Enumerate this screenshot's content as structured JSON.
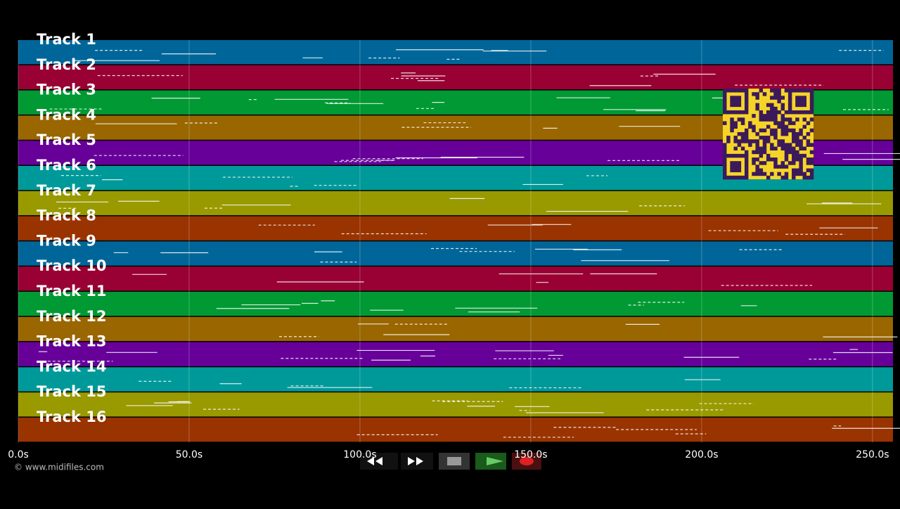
{
  "tracks": [
    {
      "label": "Track 1",
      "color": "#006699"
    },
    {
      "label": "Track 2",
      "color": "#990033"
    },
    {
      "label": "Track 3",
      "color": "#009933"
    },
    {
      "label": "Track 4",
      "color": "#996600"
    },
    {
      "label": "Track 5",
      "color": "#660099"
    },
    {
      "label": "Track 6",
      "color": "#009999"
    },
    {
      "label": "Track 7",
      "color": "#999900"
    },
    {
      "label": "Track 8",
      "color": "#993300"
    },
    {
      "label": "Track 9",
      "color": "#006699"
    },
    {
      "label": "Track 10",
      "color": "#990033"
    },
    {
      "label": "Track 11",
      "color": "#009933"
    },
    {
      "label": "Track 12",
      "color": "#996600"
    },
    {
      "label": "Track 13",
      "color": "#660099"
    },
    {
      "label": "Track 14",
      "color": "#009999"
    },
    {
      "label": "Track 15",
      "color": "#999900"
    },
    {
      "label": "Track 16",
      "color": "#993300"
    }
  ],
  "time_axis": {
    "xlim": [
      0,
      256
    ],
    "ticks": [
      {
        "value": 0,
        "label": "0.0s"
      },
      {
        "value": 50,
        "label": "50.0s"
      },
      {
        "value": 100,
        "label": "100.0s"
      },
      {
        "value": 150,
        "label": "150.0s"
      },
      {
        "value": 200,
        "label": "200.0s"
      },
      {
        "value": 250,
        "label": "250.0s"
      }
    ]
  },
  "credit": "© www.midifiles.com"
}
